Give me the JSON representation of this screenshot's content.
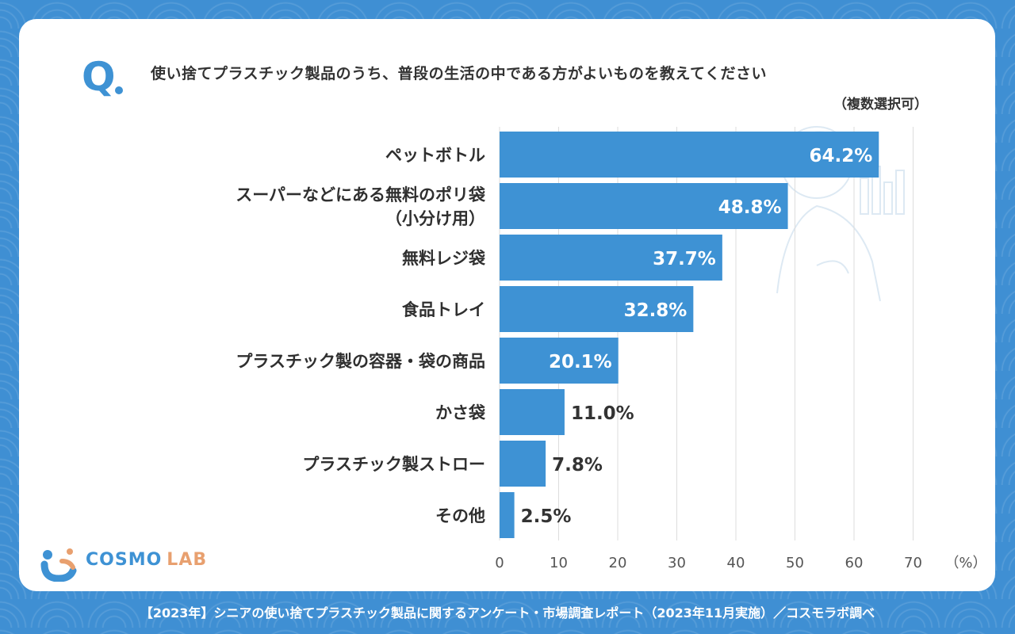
{
  "question": {
    "mark": "Q",
    "text": "使い捨てプラスチック製品のうち、普段の生活の中である方がよいものを教えてください",
    "note": "（複数選択可）"
  },
  "chart_data": {
    "type": "bar",
    "orientation": "horizontal",
    "categories": [
      [
        "ペットボトル"
      ],
      [
        "スーパーなどにある無料のポリ袋",
        "（小分け用）"
      ],
      [
        "無料レジ袋"
      ],
      [
        "食品トレイ"
      ],
      [
        "プラスチック製の容器・袋の商品"
      ],
      [
        "かさ袋"
      ],
      [
        "プラスチック製ストロー"
      ],
      [
        "その他"
      ]
    ],
    "values": [
      64.2,
      48.8,
      37.7,
      32.8,
      20.1,
      11.0,
      7.8,
      2.5
    ],
    "value_labels": [
      "64.2%",
      "48.8%",
      "37.7%",
      "32.8%",
      "20.1%",
      "11.0%",
      "7.8%",
      "2.5%"
    ],
    "xlim": [
      0,
      70
    ],
    "x_ticks": [
      0,
      10,
      20,
      30,
      40,
      50,
      60,
      70
    ],
    "x_unit": "（%）",
    "grid": true,
    "bar_color": "#3e92d4"
  },
  "logo": {
    "cosmo": "COSMO",
    "lab": "LAB"
  },
  "footer": "【2023年】シニアの使い捨てプラスチック製品に関するアンケート・市場調査レポート（2023年11月実施）／コスモラボ調べ",
  "colors": {
    "background": "#3f8fd3",
    "accent": "#3e92d4",
    "logo_lab": "#e8a06f"
  }
}
